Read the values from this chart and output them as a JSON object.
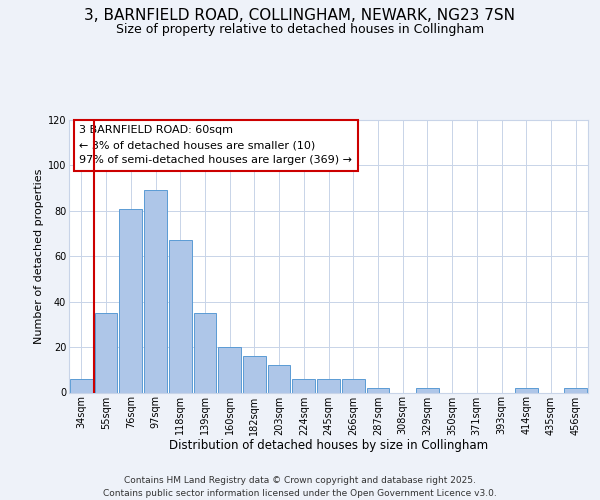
{
  "title": "3, BARNFIELD ROAD, COLLINGHAM, NEWARK, NG23 7SN",
  "subtitle": "Size of property relative to detached houses in Collingham",
  "xlabel": "Distribution of detached houses by size in Collingham",
  "ylabel": "Number of detached properties",
  "bin_labels": [
    "34sqm",
    "55sqm",
    "76sqm",
    "97sqm",
    "118sqm",
    "139sqm",
    "160sqm",
    "182sqm",
    "203sqm",
    "224sqm",
    "245sqm",
    "266sqm",
    "287sqm",
    "308sqm",
    "329sqm",
    "350sqm",
    "371sqm",
    "393sqm",
    "414sqm",
    "435sqm",
    "456sqm"
  ],
  "bar_values": [
    6,
    35,
    81,
    89,
    67,
    35,
    20,
    16,
    12,
    6,
    6,
    6,
    2,
    0,
    2,
    0,
    0,
    0,
    2,
    0,
    2
  ],
  "bar_color": "#aec6e8",
  "bar_edgecolor": "#5b9bd5",
  "vline_index": 1,
  "vline_color": "#cc0000",
  "annotation_text": "3 BARNFIELD ROAD: 60sqm\n← 3% of detached houses are smaller (10)\n97% of semi-detached houses are larger (369) →",
  "annotation_box_edgecolor": "#cc0000",
  "annotation_box_facecolor": "#ffffff",
  "ylim": [
    0,
    120
  ],
  "yticks": [
    0,
    20,
    40,
    60,
    80,
    100,
    120
  ],
  "background_color": "#eef2f9",
  "plot_background": "#ffffff",
  "grid_color": "#c8d4e8",
  "footer1": "Contains HM Land Registry data © Crown copyright and database right 2025.",
  "footer2": "Contains public sector information licensed under the Open Government Licence v3.0.",
  "title_fontsize": 11,
  "subtitle_fontsize": 9,
  "xlabel_fontsize": 8.5,
  "ylabel_fontsize": 8,
  "tick_fontsize": 7,
  "annotation_fontsize": 8,
  "footer_fontsize": 6.5
}
